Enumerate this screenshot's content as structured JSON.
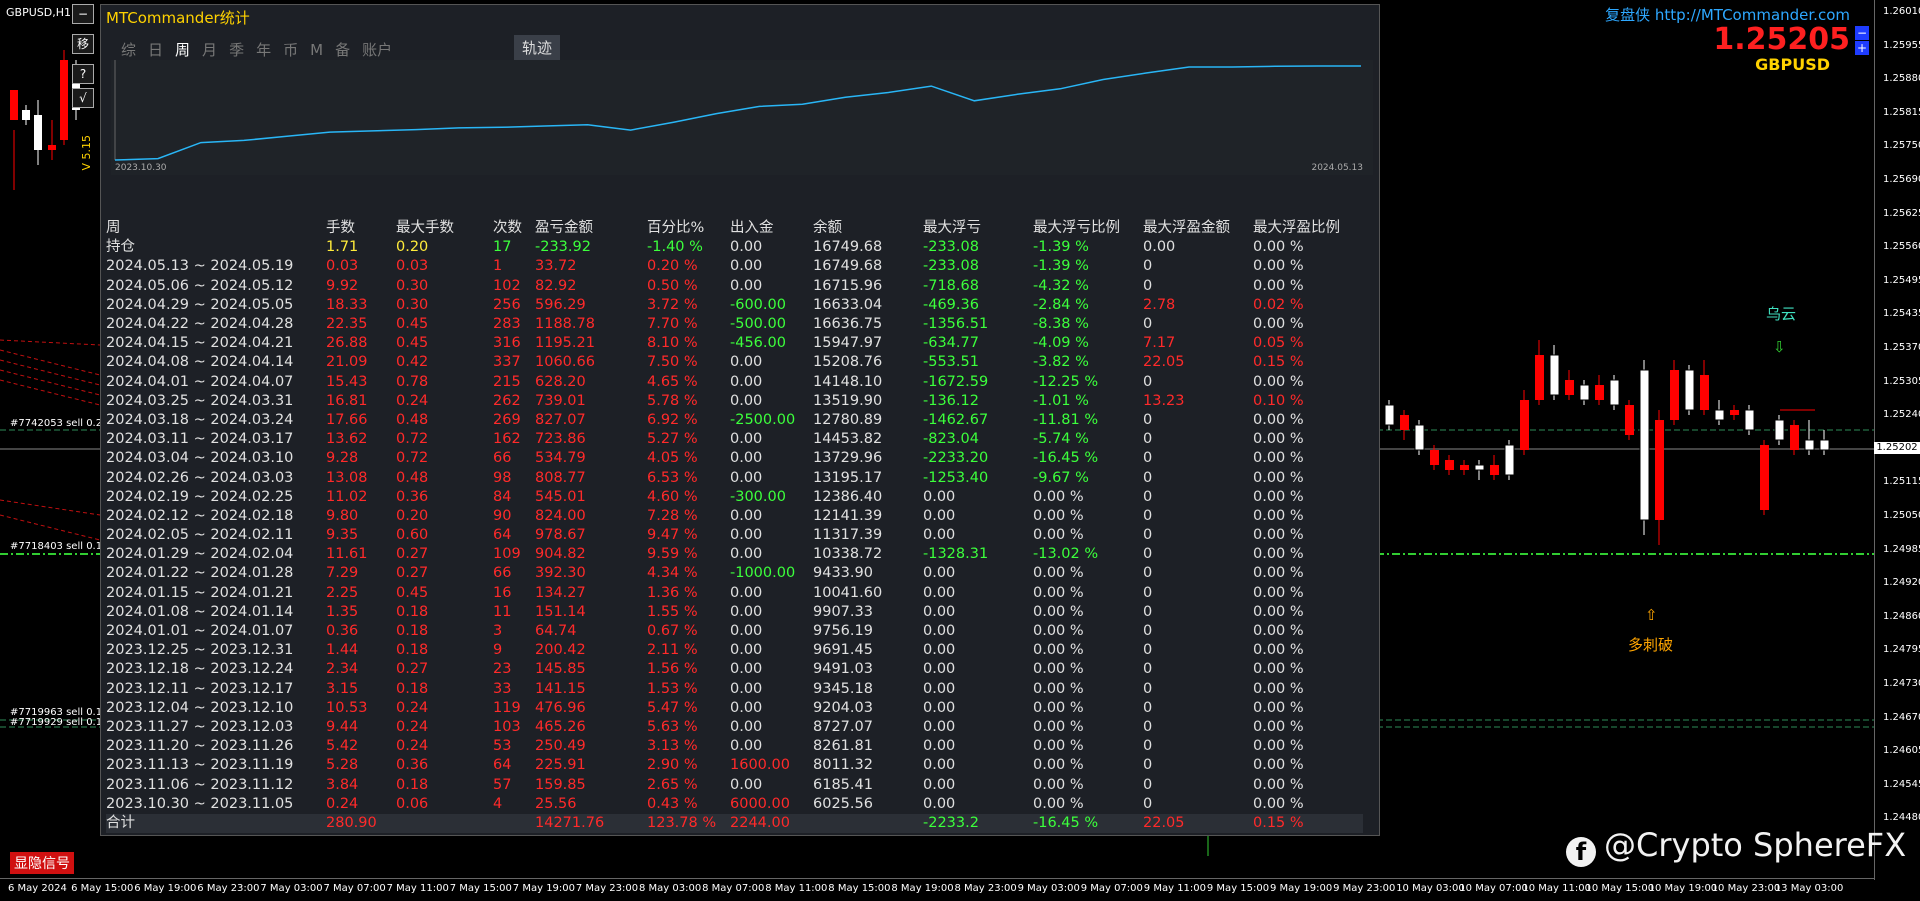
{
  "symbol_title": "GBPUSD,H1",
  "side_buttons": [
    "−",
    "移",
    "?",
    "√"
  ],
  "vertical_text": "V 5.15",
  "brand": "复盘侠 http://MTCommander.com",
  "current_price": "1.25205",
  "symbol": "GBPUSD",
  "current_price_label": "1.25202",
  "price_ticks": [
    "1.26010",
    "1.25955",
    "1.25880",
    "1.25815",
    "1.25750",
    "1.25690",
    "1.25625",
    "1.25560",
    "1.25495",
    "1.25435",
    "1.25370",
    "1.25305",
    "1.25240",
    "1.25180",
    "1.25115",
    "1.25050",
    "1.24985",
    "1.24920",
    "1.24860",
    "1.24795",
    "1.24730",
    "1.24670",
    "1.24605",
    "1.24545",
    "1.24480"
  ],
  "time_ticks": [
    "6 May 2024",
    "6 May 15:00",
    "6 May 19:00",
    "6 May 23:00",
    "7 May 03:00",
    "7 May 07:00",
    "7 May 11:00",
    "7 May 15:00",
    "7 May 19:00",
    "7 May 23:00",
    "8 May 03:00",
    "8 May 07:00",
    "8 May 11:00",
    "8 May 15:00",
    "8 May 19:00",
    "8 May 23:00",
    "9 May 03:00",
    "9 May 07:00",
    "9 May 11:00",
    "9 May 15:00",
    "9 May 19:00",
    "9 May 23:00",
    "10 May 03:00",
    "10 May 07:00",
    "10 May 11:00",
    "10 May 15:00",
    "10 May 19:00",
    "10 May 23:00",
    "13 May 03:00"
  ],
  "order_labels": [
    "#7742053 sell 0.20",
    "#7718403 sell 0.10",
    "#7719963 sell 0.10",
    "#7719929 sell 0.10"
  ],
  "annotations": {
    "cloud": "乌云",
    "break": "多刺破",
    "down_arrow": "⇩",
    "up_arrow": "⇧"
  },
  "signal_button": "显隐信号",
  "watermark": "@Crypto SphereFX",
  "panel": {
    "title": "MTCommander统计",
    "tabs": [
      "综",
      "日",
      "周",
      "月",
      "季",
      "年",
      "币",
      "M",
      "备",
      "账户"
    ],
    "active_tab": "周",
    "track_tab": "轨迹",
    "equity_start": "2023.10.30",
    "equity_end": "2024.05.13",
    "equity_series": [
      6025.56,
      6185.41,
      8011.32,
      8261.81,
      8727.07,
      9204.03,
      9345.18,
      9491.03,
      9691.45,
      9756.19,
      9907.33,
      10041.6,
      9433.9,
      10338.72,
      11317.39,
      12141.39,
      12386.4,
      13195.17,
      13729.96,
      14453.82,
      12780.89,
      13519.9,
      14148.1,
      15208.76,
      15947.97,
      16636.75,
      16633.04,
      16715.96,
      16749.68,
      16749.68
    ]
  },
  "columns": [
    "周",
    "手数",
    "最大手数",
    "次数",
    "盈亏金额",
    "百分比%",
    "出入金",
    "余额",
    "最大浮亏",
    "最大浮亏比例",
    "最大浮盈金额",
    "最大浮盈比例"
  ],
  "rows": [
    [
      "持仓",
      "1.71",
      "0.20",
      "17",
      "-233.92",
      "-1.40 %",
      "0.00",
      "16749.68",
      "-233.08",
      "-1.39 %",
      "0.00",
      "0.00 %"
    ],
    [
      "2024.05.13 ~ 2024.05.19",
      "0.03",
      "0.03",
      "1",
      "33.72",
      "0.20 %",
      "0.00",
      "16749.68",
      "-233.08",
      "-1.39 %",
      "0",
      "0.00 %"
    ],
    [
      "2024.05.06 ~ 2024.05.12",
      "9.92",
      "0.30",
      "102",
      "82.92",
      "0.50 %",
      "0.00",
      "16715.96",
      "-718.68",
      "-4.32 %",
      "0",
      "0.00 %"
    ],
    [
      "2024.04.29 ~ 2024.05.05",
      "18.33",
      "0.30",
      "256",
      "596.29",
      "3.72 %",
      "-600.00",
      "16633.04",
      "-469.36",
      "-2.84 %",
      "2.78",
      "0.02 %"
    ],
    [
      "2024.04.22 ~ 2024.04.28",
      "22.35",
      "0.45",
      "283",
      "1188.78",
      "7.70 %",
      "-500.00",
      "16636.75",
      "-1356.51",
      "-8.38 %",
      "0",
      "0.00 %"
    ],
    [
      "2024.04.15 ~ 2024.04.21",
      "26.88",
      "0.45",
      "316",
      "1195.21",
      "8.10 %",
      "-456.00",
      "15947.97",
      "-634.77",
      "-4.09 %",
      "7.17",
      "0.05 %"
    ],
    [
      "2024.04.08 ~ 2024.04.14",
      "21.09",
      "0.42",
      "337",
      "1060.66",
      "7.50 %",
      "0.00",
      "15208.76",
      "-553.51",
      "-3.82 %",
      "22.05",
      "0.15 %"
    ],
    [
      "2024.04.01 ~ 2024.04.07",
      "15.43",
      "0.78",
      "215",
      "628.20",
      "4.65 %",
      "0.00",
      "14148.10",
      "-1672.59",
      "-12.25 %",
      "0",
      "0.00 %"
    ],
    [
      "2024.03.25 ~ 2024.03.31",
      "16.81",
      "0.24",
      "262",
      "739.01",
      "5.78 %",
      "0.00",
      "13519.90",
      "-136.12",
      "-1.01 %",
      "13.23",
      "0.10 %"
    ],
    [
      "2024.03.18 ~ 2024.03.24",
      "17.66",
      "0.48",
      "269",
      "827.07",
      "6.92 %",
      "-2500.00",
      "12780.89",
      "-1462.67",
      "-11.81 %",
      "0",
      "0.00 %"
    ],
    [
      "2024.03.11 ~ 2024.03.17",
      "13.62",
      "0.72",
      "162",
      "723.86",
      "5.27 %",
      "0.00",
      "14453.82",
      "-823.04",
      "-5.74 %",
      "0",
      "0.00 %"
    ],
    [
      "2024.03.04 ~ 2024.03.10",
      "9.28",
      "0.72",
      "66",
      "534.79",
      "4.05 %",
      "0.00",
      "13729.96",
      "-2233.20",
      "-16.45 %",
      "0",
      "0.00 %"
    ],
    [
      "2024.02.26 ~ 2024.03.03",
      "13.08",
      "0.48",
      "98",
      "808.77",
      "6.53 %",
      "0.00",
      "13195.17",
      "-1253.40",
      "-9.67 %",
      "0",
      "0.00 %"
    ],
    [
      "2024.02.19 ~ 2024.02.25",
      "11.02",
      "0.36",
      "84",
      "545.01",
      "4.60 %",
      "-300.00",
      "12386.40",
      "0.00",
      "0.00 %",
      "0",
      "0.00 %"
    ],
    [
      "2024.02.12 ~ 2024.02.18",
      "9.80",
      "0.20",
      "90",
      "824.00",
      "7.28 %",
      "0.00",
      "12141.39",
      "0.00",
      "0.00 %",
      "0",
      "0.00 %"
    ],
    [
      "2024.02.05 ~ 2024.02.11",
      "9.35",
      "0.60",
      "64",
      "978.67",
      "9.47 %",
      "0.00",
      "11317.39",
      "0.00",
      "0.00 %",
      "0",
      "0.00 %"
    ],
    [
      "2024.01.29 ~ 2024.02.04",
      "11.61",
      "0.27",
      "109",
      "904.82",
      "9.59 %",
      "0.00",
      "10338.72",
      "-1328.31",
      "-13.02 %",
      "0",
      "0.00 %"
    ],
    [
      "2024.01.22 ~ 2024.01.28",
      "7.29",
      "0.27",
      "66",
      "392.30",
      "4.34 %",
      "-1000.00",
      "9433.90",
      "0.00",
      "0.00 %",
      "0",
      "0.00 %"
    ],
    [
      "2024.01.15 ~ 2024.01.21",
      "2.25",
      "0.45",
      "16",
      "134.27",
      "1.36 %",
      "0.00",
      "10041.60",
      "0.00",
      "0.00 %",
      "0",
      "0.00 %"
    ],
    [
      "2024.01.08 ~ 2024.01.14",
      "1.35",
      "0.18",
      "11",
      "151.14",
      "1.55 %",
      "0.00",
      "9907.33",
      "0.00",
      "0.00 %",
      "0",
      "0.00 %"
    ],
    [
      "2024.01.01 ~ 2024.01.07",
      "0.36",
      "0.18",
      "3",
      "64.74",
      "0.67 %",
      "0.00",
      "9756.19",
      "0.00",
      "0.00 %",
      "0",
      "0.00 %"
    ],
    [
      "2023.12.25 ~ 2023.12.31",
      "1.44",
      "0.18",
      "9",
      "200.42",
      "2.11 %",
      "0.00",
      "9691.45",
      "0.00",
      "0.00 %",
      "0",
      "0.00 %"
    ],
    [
      "2023.12.18 ~ 2023.12.24",
      "2.34",
      "0.27",
      "23",
      "145.85",
      "1.56 %",
      "0.00",
      "9491.03",
      "0.00",
      "0.00 %",
      "0",
      "0.00 %"
    ],
    [
      "2023.12.11 ~ 2023.12.17",
      "3.15",
      "0.18",
      "33",
      "141.15",
      "1.53 %",
      "0.00",
      "9345.18",
      "0.00",
      "0.00 %",
      "0",
      "0.00 %"
    ],
    [
      "2023.12.04 ~ 2023.12.10",
      "10.53",
      "0.24",
      "119",
      "476.96",
      "5.47 %",
      "0.00",
      "9204.03",
      "0.00",
      "0.00 %",
      "0",
      "0.00 %"
    ],
    [
      "2023.11.27 ~ 2023.12.03",
      "9.44",
      "0.24",
      "103",
      "465.26",
      "5.63 %",
      "0.00",
      "8727.07",
      "0.00",
      "0.00 %",
      "0",
      "0.00 %"
    ],
    [
      "2023.11.20 ~ 2023.11.26",
      "5.42",
      "0.24",
      "53",
      "250.49",
      "3.13 %",
      "0.00",
      "8261.81",
      "0.00",
      "0.00 %",
      "0",
      "0.00 %"
    ],
    [
      "2023.11.13 ~ 2023.11.19",
      "5.28",
      "0.36",
      "64",
      "225.91",
      "2.90 %",
      "1600.00",
      "8011.32",
      "0.00",
      "0.00 %",
      "0",
      "0.00 %"
    ],
    [
      "2023.11.06 ~ 2023.11.12",
      "3.84",
      "0.18",
      "57",
      "159.85",
      "2.65 %",
      "0.00",
      "6185.41",
      "0.00",
      "0.00 %",
      "0",
      "0.00 %"
    ],
    [
      "2023.10.30 ~ 2023.11.05",
      "0.24",
      "0.06",
      "4",
      "25.56",
      "0.43 %",
      "6000.00",
      "6025.56",
      "0.00",
      "0.00 %",
      "0",
      "0.00 %"
    ]
  ],
  "total": [
    "合计",
    "280.90",
    "",
    "",
    "14271.76",
    "123.78 %",
    "2244.00",
    "",
    "-2233.2",
    "-16.45 %",
    "22.05",
    "0.15 %"
  ],
  "colors": {
    "profit": "#ff2a2a",
    "loss": "#3cff3c",
    "neutral": "#e0e0e0",
    "title": "#ffd200",
    "brand": "#2ea8ff",
    "equity_line": "#29b6f6"
  }
}
